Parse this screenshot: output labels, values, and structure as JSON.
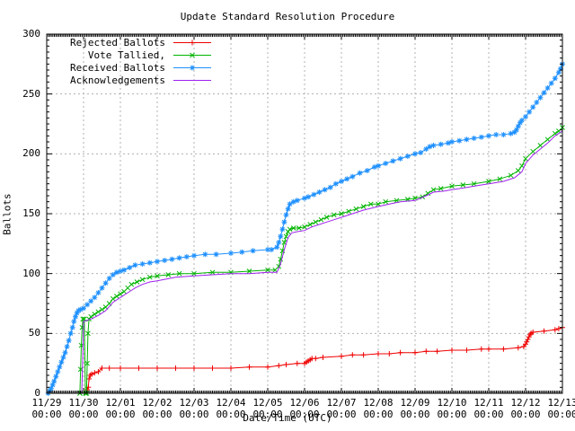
{
  "chart_data": {
    "type": "line",
    "title": "Update Standard Resolution Procedure",
    "xlabel": "Date/Time (UTC)",
    "ylabel": "Ballots",
    "ylim": [
      0,
      300
    ],
    "y_major_ticks": [
      0,
      50,
      100,
      150,
      200,
      250,
      300
    ],
    "y_minor_step": 5,
    "x_minor_ticks_per_day": 24,
    "grid": true,
    "legend_position": "top-left",
    "x_tick_labels": [
      {
        "date": "11/29",
        "time": "00:00"
      },
      {
        "date": "11/30",
        "time": "00:00"
      },
      {
        "date": "12/01",
        "time": "00:00"
      },
      {
        "date": "12/02",
        "time": "00:00"
      },
      {
        "date": "12/03",
        "time": "00:00"
      },
      {
        "date": "12/04",
        "time": "00:00"
      },
      {
        "date": "12/05",
        "time": "00:00"
      },
      {
        "date": "12/06",
        "time": "00:00"
      },
      {
        "date": "12/07",
        "time": "00:00"
      },
      {
        "date": "12/08",
        "time": "00:00"
      },
      {
        "date": "12/09",
        "time": "00:00"
      },
      {
        "date": "12/10",
        "time": "00:00"
      },
      {
        "date": "12/11",
        "time": "00:00"
      },
      {
        "date": "12/12",
        "time": "00:00"
      },
      {
        "date": "12/13",
        "time": "00:00"
      }
    ],
    "x_axis_note": "x unit = days since 11/29 00:00 UTC",
    "series": [
      {
        "name": "Rejected Ballots",
        "color": "#ef0000",
        "marker": "plus",
        "points": [
          [
            1.1,
            3
          ],
          [
            1.13,
            5
          ],
          [
            1.15,
            12
          ],
          [
            1.18,
            15
          ],
          [
            1.22,
            16
          ],
          [
            1.3,
            17
          ],
          [
            1.4,
            18
          ],
          [
            1.5,
            21
          ],
          [
            1.7,
            21
          ],
          [
            2.0,
            21
          ],
          [
            2.5,
            21
          ],
          [
            3.0,
            21
          ],
          [
            3.5,
            21
          ],
          [
            4.0,
            21
          ],
          [
            4.5,
            21
          ],
          [
            5.0,
            21
          ],
          [
            5.5,
            22
          ],
          [
            6.0,
            22
          ],
          [
            6.3,
            23
          ],
          [
            6.5,
            24
          ],
          [
            6.8,
            25
          ],
          [
            7.0,
            25
          ],
          [
            7.05,
            26
          ],
          [
            7.1,
            27
          ],
          [
            7.15,
            28
          ],
          [
            7.2,
            29
          ],
          [
            7.3,
            29
          ],
          [
            7.5,
            30
          ],
          [
            8.0,
            31
          ],
          [
            8.3,
            32
          ],
          [
            8.6,
            32
          ],
          [
            9.0,
            33
          ],
          [
            9.3,
            33
          ],
          [
            9.6,
            34
          ],
          [
            10.0,
            34
          ],
          [
            10.3,
            35
          ],
          [
            10.6,
            35
          ],
          [
            11.0,
            36
          ],
          [
            11.4,
            36
          ],
          [
            11.8,
            37
          ],
          [
            12.0,
            37
          ],
          [
            12.4,
            37
          ],
          [
            12.8,
            38
          ],
          [
            12.95,
            39
          ],
          [
            13.0,
            41
          ],
          [
            13.03,
            43
          ],
          [
            13.06,
            45
          ],
          [
            13.09,
            47
          ],
          [
            13.12,
            49
          ],
          [
            13.15,
            50
          ],
          [
            13.2,
            51
          ],
          [
            13.5,
            52
          ],
          [
            13.8,
            53
          ],
          [
            13.9,
            54
          ],
          [
            14.0,
            55
          ]
        ]
      },
      {
        "name": "Vote Tallied,",
        "color": "#00b400",
        "marker": "cross",
        "points": [
          [
            0.9,
            0
          ],
          [
            0.92,
            20
          ],
          [
            0.94,
            40
          ],
          [
            0.96,
            55
          ],
          [
            0.98,
            62
          ],
          [
            1.02,
            62
          ],
          [
            1.05,
            0
          ],
          [
            1.08,
            0
          ],
          [
            1.1,
            25
          ],
          [
            1.12,
            50
          ],
          [
            1.15,
            62
          ],
          [
            1.2,
            64
          ],
          [
            1.3,
            66
          ],
          [
            1.4,
            68
          ],
          [
            1.5,
            70
          ],
          [
            1.6,
            72
          ],
          [
            1.7,
            75
          ],
          [
            1.8,
            79
          ],
          [
            1.9,
            81
          ],
          [
            2.0,
            83
          ],
          [
            2.1,
            85
          ],
          [
            2.2,
            88
          ],
          [
            2.3,
            91
          ],
          [
            2.45,
            93
          ],
          [
            2.6,
            95
          ],
          [
            2.8,
            97
          ],
          [
            3.0,
            98
          ],
          [
            3.3,
            99
          ],
          [
            3.6,
            100
          ],
          [
            4.0,
            100
          ],
          [
            4.5,
            101
          ],
          [
            5.0,
            101
          ],
          [
            5.5,
            102
          ],
          [
            6.0,
            103
          ],
          [
            6.2,
            103
          ],
          [
            6.3,
            106
          ],
          [
            6.35,
            112
          ],
          [
            6.4,
            119
          ],
          [
            6.45,
            126
          ],
          [
            6.5,
            131
          ],
          [
            6.55,
            135
          ],
          [
            6.6,
            137
          ],
          [
            6.7,
            138
          ],
          [
            6.85,
            138
          ],
          [
            7.0,
            139
          ],
          [
            7.15,
            141
          ],
          [
            7.3,
            143
          ],
          [
            7.45,
            145
          ],
          [
            7.6,
            147
          ],
          [
            7.8,
            149
          ],
          [
            8.0,
            150
          ],
          [
            8.2,
            152
          ],
          [
            8.4,
            154
          ],
          [
            8.6,
            156
          ],
          [
            8.8,
            158
          ],
          [
            9.0,
            158
          ],
          [
            9.2,
            160
          ],
          [
            9.5,
            161
          ],
          [
            9.8,
            162
          ],
          [
            10.0,
            163
          ],
          [
            10.2,
            164
          ],
          [
            10.35,
            167
          ],
          [
            10.5,
            170
          ],
          [
            10.7,
            171
          ],
          [
            11.0,
            173
          ],
          [
            11.3,
            174
          ],
          [
            11.6,
            175
          ],
          [
            12.0,
            177
          ],
          [
            12.3,
            179
          ],
          [
            12.6,
            182
          ],
          [
            12.8,
            186
          ],
          [
            12.9,
            190
          ],
          [
            13.0,
            196
          ],
          [
            13.2,
            202
          ],
          [
            13.4,
            207
          ],
          [
            13.6,
            212
          ],
          [
            13.8,
            217
          ],
          [
            13.9,
            219
          ],
          [
            14.0,
            222
          ]
        ]
      },
      {
        "name": "Received Ballots",
        "color": "#1e90ff",
        "marker": "star",
        "points": [
          [
            0.04,
            0
          ],
          [
            0.08,
            2
          ],
          [
            0.12,
            4
          ],
          [
            0.16,
            7
          ],
          [
            0.2,
            10
          ],
          [
            0.25,
            14
          ],
          [
            0.3,
            18
          ],
          [
            0.35,
            22
          ],
          [
            0.4,
            26
          ],
          [
            0.45,
            30
          ],
          [
            0.5,
            34
          ],
          [
            0.55,
            39
          ],
          [
            0.6,
            44
          ],
          [
            0.65,
            50
          ],
          [
            0.7,
            55
          ],
          [
            0.74,
            60
          ],
          [
            0.78,
            64
          ],
          [
            0.82,
            67
          ],
          [
            0.86,
            69
          ],
          [
            0.92,
            70
          ],
          [
            1.0,
            71
          ],
          [
            1.1,
            74
          ],
          [
            1.2,
            77
          ],
          [
            1.3,
            80
          ],
          [
            1.4,
            84
          ],
          [
            1.5,
            88
          ],
          [
            1.6,
            92
          ],
          [
            1.7,
            96
          ],
          [
            1.8,
            99
          ],
          [
            1.9,
            101
          ],
          [
            2.0,
            102
          ],
          [
            2.1,
            103
          ],
          [
            2.25,
            105
          ],
          [
            2.4,
            107
          ],
          [
            2.6,
            108
          ],
          [
            2.8,
            109
          ],
          [
            3.0,
            110
          ],
          [
            3.2,
            111
          ],
          [
            3.4,
            112
          ],
          [
            3.6,
            113
          ],
          [
            3.8,
            114
          ],
          [
            4.0,
            115
          ],
          [
            4.3,
            116
          ],
          [
            4.6,
            116
          ],
          [
            5.0,
            117
          ],
          [
            5.3,
            118
          ],
          [
            5.6,
            119
          ],
          [
            6.0,
            120
          ],
          [
            6.1,
            120
          ],
          [
            6.25,
            122
          ],
          [
            6.3,
            126
          ],
          [
            6.35,
            131
          ],
          [
            6.4,
            137
          ],
          [
            6.45,
            143
          ],
          [
            6.5,
            149
          ],
          [
            6.55,
            154
          ],
          [
            6.6,
            158
          ],
          [
            6.7,
            160
          ],
          [
            6.8,
            161
          ],
          [
            7.0,
            163
          ],
          [
            7.1,
            164
          ],
          [
            7.25,
            166
          ],
          [
            7.4,
            168
          ],
          [
            7.55,
            170
          ],
          [
            7.7,
            172
          ],
          [
            7.85,
            175
          ],
          [
            8.0,
            177
          ],
          [
            8.15,
            179
          ],
          [
            8.3,
            181
          ],
          [
            8.5,
            184
          ],
          [
            8.7,
            186
          ],
          [
            8.9,
            189
          ],
          [
            9.0,
            190
          ],
          [
            9.2,
            192
          ],
          [
            9.4,
            194
          ],
          [
            9.6,
            196
          ],
          [
            9.8,
            198
          ],
          [
            10.0,
            200
          ],
          [
            10.15,
            201
          ],
          [
            10.3,
            204
          ],
          [
            10.4,
            206
          ],
          [
            10.5,
            207
          ],
          [
            10.7,
            208
          ],
          [
            10.9,
            209
          ],
          [
            11.0,
            210
          ],
          [
            11.2,
            211
          ],
          [
            11.4,
            212
          ],
          [
            11.6,
            213
          ],
          [
            11.8,
            214
          ],
          [
            12.0,
            215
          ],
          [
            12.2,
            216
          ],
          [
            12.4,
            216
          ],
          [
            12.6,
            217
          ],
          [
            12.7,
            218
          ],
          [
            12.75,
            220
          ],
          [
            12.8,
            223
          ],
          [
            12.85,
            226
          ],
          [
            12.9,
            228
          ],
          [
            13.0,
            231
          ],
          [
            13.1,
            235
          ],
          [
            13.2,
            239
          ],
          [
            13.3,
            243
          ],
          [
            13.4,
            247
          ],
          [
            13.5,
            251
          ],
          [
            13.6,
            255
          ],
          [
            13.7,
            259
          ],
          [
            13.8,
            263
          ],
          [
            13.9,
            268
          ],
          [
            13.95,
            271
          ],
          [
            14.0,
            275
          ]
        ]
      },
      {
        "name": "Acknowledgements",
        "color": "#a020f0",
        "marker": "none",
        "points": [
          [
            0.1,
            0
          ],
          [
            0.95,
            0
          ],
          [
            0.98,
            30
          ],
          [
            1.0,
            60
          ],
          [
            1.2,
            62
          ],
          [
            1.4,
            65
          ],
          [
            1.6,
            69
          ],
          [
            1.8,
            76
          ],
          [
            2.0,
            80
          ],
          [
            2.2,
            84
          ],
          [
            2.4,
            88
          ],
          [
            2.6,
            91
          ],
          [
            2.8,
            93
          ],
          [
            3.0,
            94
          ],
          [
            3.5,
            97
          ],
          [
            4.0,
            98
          ],
          [
            4.5,
            99
          ],
          [
            5.0,
            100
          ],
          [
            5.5,
            100
          ],
          [
            6.0,
            101
          ],
          [
            6.25,
            101
          ],
          [
            6.35,
            108
          ],
          [
            6.45,
            120
          ],
          [
            6.55,
            130
          ],
          [
            6.65,
            134
          ],
          [
            6.8,
            135
          ],
          [
            7.0,
            136
          ],
          [
            7.2,
            139
          ],
          [
            7.4,
            141
          ],
          [
            7.6,
            143
          ],
          [
            7.8,
            145
          ],
          [
            8.0,
            147
          ],
          [
            8.3,
            150
          ],
          [
            8.6,
            153
          ],
          [
            9.0,
            156
          ],
          [
            9.3,
            158
          ],
          [
            9.6,
            160
          ],
          [
            10.0,
            161
          ],
          [
            10.3,
            165
          ],
          [
            10.5,
            168
          ],
          [
            10.8,
            169
          ],
          [
            11.0,
            170
          ],
          [
            11.4,
            172
          ],
          [
            11.8,
            174
          ],
          [
            12.0,
            175
          ],
          [
            12.4,
            177
          ],
          [
            12.7,
            180
          ],
          [
            12.9,
            185
          ],
          [
            13.0,
            192
          ],
          [
            13.2,
            199
          ],
          [
            13.4,
            204
          ],
          [
            13.6,
            209
          ],
          [
            13.8,
            215
          ],
          [
            13.95,
            218
          ],
          [
            14.0,
            219
          ]
        ]
      }
    ]
  }
}
